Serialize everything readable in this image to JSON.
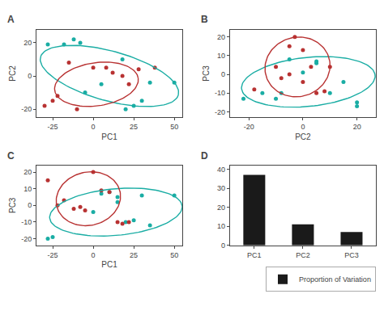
{
  "chart_data": [
    {
      "type": "scatter",
      "title": "A",
      "xlabel": "PC1",
      "ylabel": "PC2",
      "xlim": [
        -35,
        55
      ],
      "ylim": [
        -25,
        28
      ],
      "xticks": [
        -25,
        0,
        25,
        50
      ],
      "yticks": [
        -20,
        0,
        20
      ],
      "grid": false,
      "series": [
        {
          "color": "#1AADA4",
          "x": [
            -28,
            -18,
            -12,
            -8,
            5,
            18,
            20,
            25,
            30,
            35,
            50,
            -5
          ],
          "values": [
            19,
            19,
            22,
            20,
            -5,
            10,
            -20,
            -18,
            -15,
            -4,
            -4,
            -10
          ],
          "ellipse": {
            "cx": 10,
            "cy": 0,
            "width": 88,
            "height": 30,
            "angle": -15
          }
        },
        {
          "color": "#B83232",
          "x": [
            -30,
            -25,
            -22,
            -15,
            -10,
            0,
            8,
            12,
            18,
            22,
            28,
            38
          ],
          "values": [
            -18,
            -15,
            -12,
            8,
            -20,
            5,
            5,
            2,
            0,
            -5,
            4,
            5
          ],
          "ellipse": {
            "cx": 2,
            "cy": -5,
            "width": 52,
            "height": 26,
            "angle": 8
          }
        }
      ]
    },
    {
      "type": "scatter",
      "title": "B",
      "xlabel": "PC2",
      "ylabel": "PC3",
      "xlim": [
        -27,
        27
      ],
      "ylim": [
        -23,
        24
      ],
      "xticks": [
        -20,
        0,
        20
      ],
      "yticks": [
        -20,
        -10,
        0,
        10,
        20
      ],
      "grid": false,
      "series": [
        {
          "color": "#1AADA4",
          "x": [
            -22,
            -15,
            -10,
            -5,
            0,
            5,
            10,
            15,
            20,
            5,
            20,
            -8
          ],
          "values": [
            -13,
            -10,
            -13,
            8,
            1,
            7,
            -10,
            -4,
            -15,
            6,
            -17,
            -10
          ],
          "ellipse": {
            "cx": 2,
            "cy": -4,
            "width": 50,
            "height": 26,
            "angle": 10
          }
        },
        {
          "color": "#B83232",
          "x": [
            -18,
            -10,
            -8,
            -5,
            -3,
            0,
            3,
            5,
            8,
            10,
            -5,
            0
          ],
          "values": [
            -8,
            4,
            -2,
            0,
            20,
            13,
            4,
            -10,
            -9,
            4,
            15,
            -4
          ],
          "ellipse": {
            "cx": -2,
            "cy": 4,
            "width": 24,
            "height": 32,
            "angle": -5
          }
        }
      ]
    },
    {
      "type": "scatter",
      "title": "C",
      "xlabel": "PC1",
      "ylabel": "PC3",
      "xlim": [
        -35,
        55
      ],
      "ylim": [
        -24,
        24
      ],
      "xticks": [
        -25,
        0,
        25,
        50
      ],
      "yticks": [
        -20,
        -10,
        0,
        10,
        20
      ],
      "grid": false,
      "series": [
        {
          "color": "#1AADA4",
          "x": [
            -28,
            -25,
            0,
            5,
            10,
            15,
            20,
            25,
            30,
            35,
            50,
            15
          ],
          "values": [
            -20,
            -19,
            -4,
            7,
            8,
            2,
            -10,
            -9,
            6,
            -12,
            6,
            5
          ],
          "ellipse": {
            "cx": 14,
            "cy": -4,
            "width": 82,
            "height": 28,
            "angle": 5
          }
        },
        {
          "color": "#B83232",
          "x": [
            -28,
            -22,
            -18,
            -12,
            -8,
            0,
            5,
            10,
            15,
            18,
            22,
            -5
          ],
          "values": [
            15,
            0,
            3,
            -2,
            -1,
            20,
            9,
            8,
            -10,
            -11,
            -10,
            -3
          ],
          "ellipse": {
            "cx": -3,
            "cy": 4,
            "width": 40,
            "height": 32,
            "angle": 12
          }
        }
      ]
    },
    {
      "type": "bar",
      "title": "D",
      "categories": [
        "PC1",
        "PC2",
        "PC3"
      ],
      "series": [
        {
          "name": "Proportion of Variation",
          "color": "#1a1a1a",
          "values": [
            37,
            11,
            7
          ]
        }
      ],
      "ylim": [
        0,
        42
      ],
      "yticks": [
        0,
        10,
        20,
        30,
        40
      ],
      "legend": "lower right",
      "grid": false
    }
  ]
}
